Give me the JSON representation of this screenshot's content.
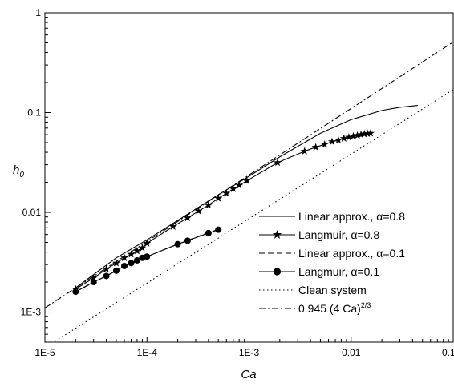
{
  "chart_data": {
    "type": "line",
    "title": "",
    "xlabel": "Ca",
    "ylabel": "h",
    "ylabel_subscript": "0",
    "x_scale": "log",
    "y_scale": "log",
    "xlim": [
      1e-05,
      0.1
    ],
    "ylim": [
      0.0005,
      1
    ],
    "x_ticks": [
      {
        "value": 1e-05,
        "label": "1E-5"
      },
      {
        "value": 0.0001,
        "label": "1E-4"
      },
      {
        "value": 0.001,
        "label": "1E-3"
      },
      {
        "value": 0.01,
        "label": "0.01"
      },
      {
        "value": 0.1,
        "label": "0.1"
      }
    ],
    "y_ticks": [
      {
        "value": 0.001,
        "label": "1E-3"
      },
      {
        "value": 0.01,
        "label": "0.01"
      },
      {
        "value": 0.1,
        "label": "0.1"
      },
      {
        "value": 1,
        "label": "1"
      }
    ],
    "legend_position": "bottom-right",
    "series": [
      {
        "name": "Linear approx., α=0.8",
        "style": "solid",
        "marker": "none",
        "x": [
          2e-05,
          5e-05,
          0.0001,
          0.0002,
          0.0005,
          0.001,
          0.002,
          0.005,
          0.01,
          0.02,
          0.03,
          0.045
        ],
        "y": [
          0.00175,
          0.0035,
          0.0053,
          0.0083,
          0.015,
          0.023,
          0.036,
          0.062,
          0.085,
          0.105,
          0.113,
          0.118
        ]
      },
      {
        "name": "Langmuir, α=0.8",
        "style": "solid",
        "marker": "star",
        "x": [
          2e-05,
          3e-05,
          4e-05,
          5e-05,
          6e-05,
          7e-05,
          8e-05,
          9e-05,
          0.0001,
          0.00018,
          0.00025,
          0.00032,
          0.0004,
          0.0005,
          0.0006,
          0.0007,
          0.0008,
          0.00095,
          0.0019,
          0.0035,
          0.0045,
          0.0055,
          0.0065,
          0.0075,
          0.0085,
          0.0095,
          0.0105,
          0.0115,
          0.0125,
          0.0135,
          0.0145,
          0.0155
        ],
        "y": [
          0.0017,
          0.0022,
          0.0027,
          0.0031,
          0.0035,
          0.0038,
          0.0041,
          0.0044,
          0.0049,
          0.0072,
          0.0088,
          0.0103,
          0.0118,
          0.0138,
          0.0155,
          0.0172,
          0.0186,
          0.0207,
          0.0315,
          0.041,
          0.045,
          0.048,
          0.051,
          0.053,
          0.055,
          0.0565,
          0.058,
          0.059,
          0.06,
          0.061,
          0.0615,
          0.062
        ]
      },
      {
        "name": "Linear approx., α=0.1",
        "style": "dashed",
        "marker": "none",
        "x": [
          2e-05,
          5e-05,
          0.0001,
          0.0002,
          0.0003,
          0.0004,
          0.0005
        ],
        "y": [
          0.0016,
          0.0026,
          0.0036,
          0.0048,
          0.0056,
          0.0063,
          0.0067
        ]
      },
      {
        "name": "Langmuir, α=0.1",
        "style": "solid",
        "marker": "circle",
        "x": [
          2e-05,
          3e-05,
          4e-05,
          5e-05,
          6e-05,
          7e-05,
          8e-05,
          9e-05,
          0.0001,
          0.0002,
          0.00025,
          0.0004,
          0.0005
        ],
        "y": [
          0.0016,
          0.002,
          0.0023,
          0.0026,
          0.0029,
          0.0031,
          0.0033,
          0.0035,
          0.0036,
          0.0048,
          0.0052,
          0.0062,
          0.0067
        ]
      },
      {
        "name": "Clean system",
        "style": "dotted",
        "marker": "none",
        "x": [
          1e-05,
          0.1
        ],
        "y": [
          0.00044,
          0.17
        ]
      },
      {
        "name": "0.945 (4 Ca)",
        "name_superscript": "2/3",
        "style": "dashdot",
        "marker": "none",
        "x": [
          1e-05,
          0.1
        ],
        "y": [
          0.0011,
          0.51
        ]
      }
    ]
  }
}
